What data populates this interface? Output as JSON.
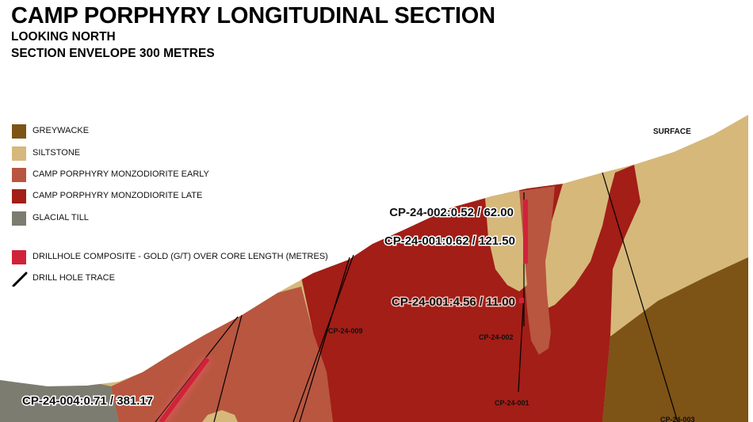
{
  "header": {
    "title": "CAMP PORPHYRY LONGITUDINAL SECTION",
    "subtitle_1": "LOOKING NORTH",
    "subtitle_2": "SECTION ENVELOPE 300 METRES"
  },
  "legend": {
    "items": [
      {
        "label": "GREYWACKE",
        "color": "#7d5316"
      },
      {
        "label": "SILTSTONE",
        "color": "#d6b87a"
      },
      {
        "label": "CAMP PORPHYRY MONZODIORITE EARLY",
        "color": "#b85640"
      },
      {
        "label": "CAMP PORPHYRY MONZODIORITE LATE",
        "color": "#a21e17"
      },
      {
        "label": "GLACIAL TILL",
        "color": "#7d7c71"
      }
    ],
    "composite_label": "DRILLHOLE COMPOSITE - GOLD (G/T) OVER CORE LENGTH (METRES)",
    "composite_color": "#d0233a",
    "trace_label": "DRILL HOLE TRACE",
    "trace_color": "#000000"
  },
  "section": {
    "surface_label": "SURFACE",
    "composites": [
      {
        "label": "CP-24-002:0.52 / 62.00"
      },
      {
        "label": "CP-24-001:0.62 / 121.50"
      },
      {
        "label": "CP-24-001:4.56 / 11.00"
      },
      {
        "label": "CP-24-004:0.71 / 381.17"
      }
    ],
    "holes": [
      {
        "label": "CP-24-009"
      },
      {
        "label": "CP-24-002"
      },
      {
        "label": "CP-24-001"
      },
      {
        "label": "CP-24-003"
      }
    ]
  }
}
